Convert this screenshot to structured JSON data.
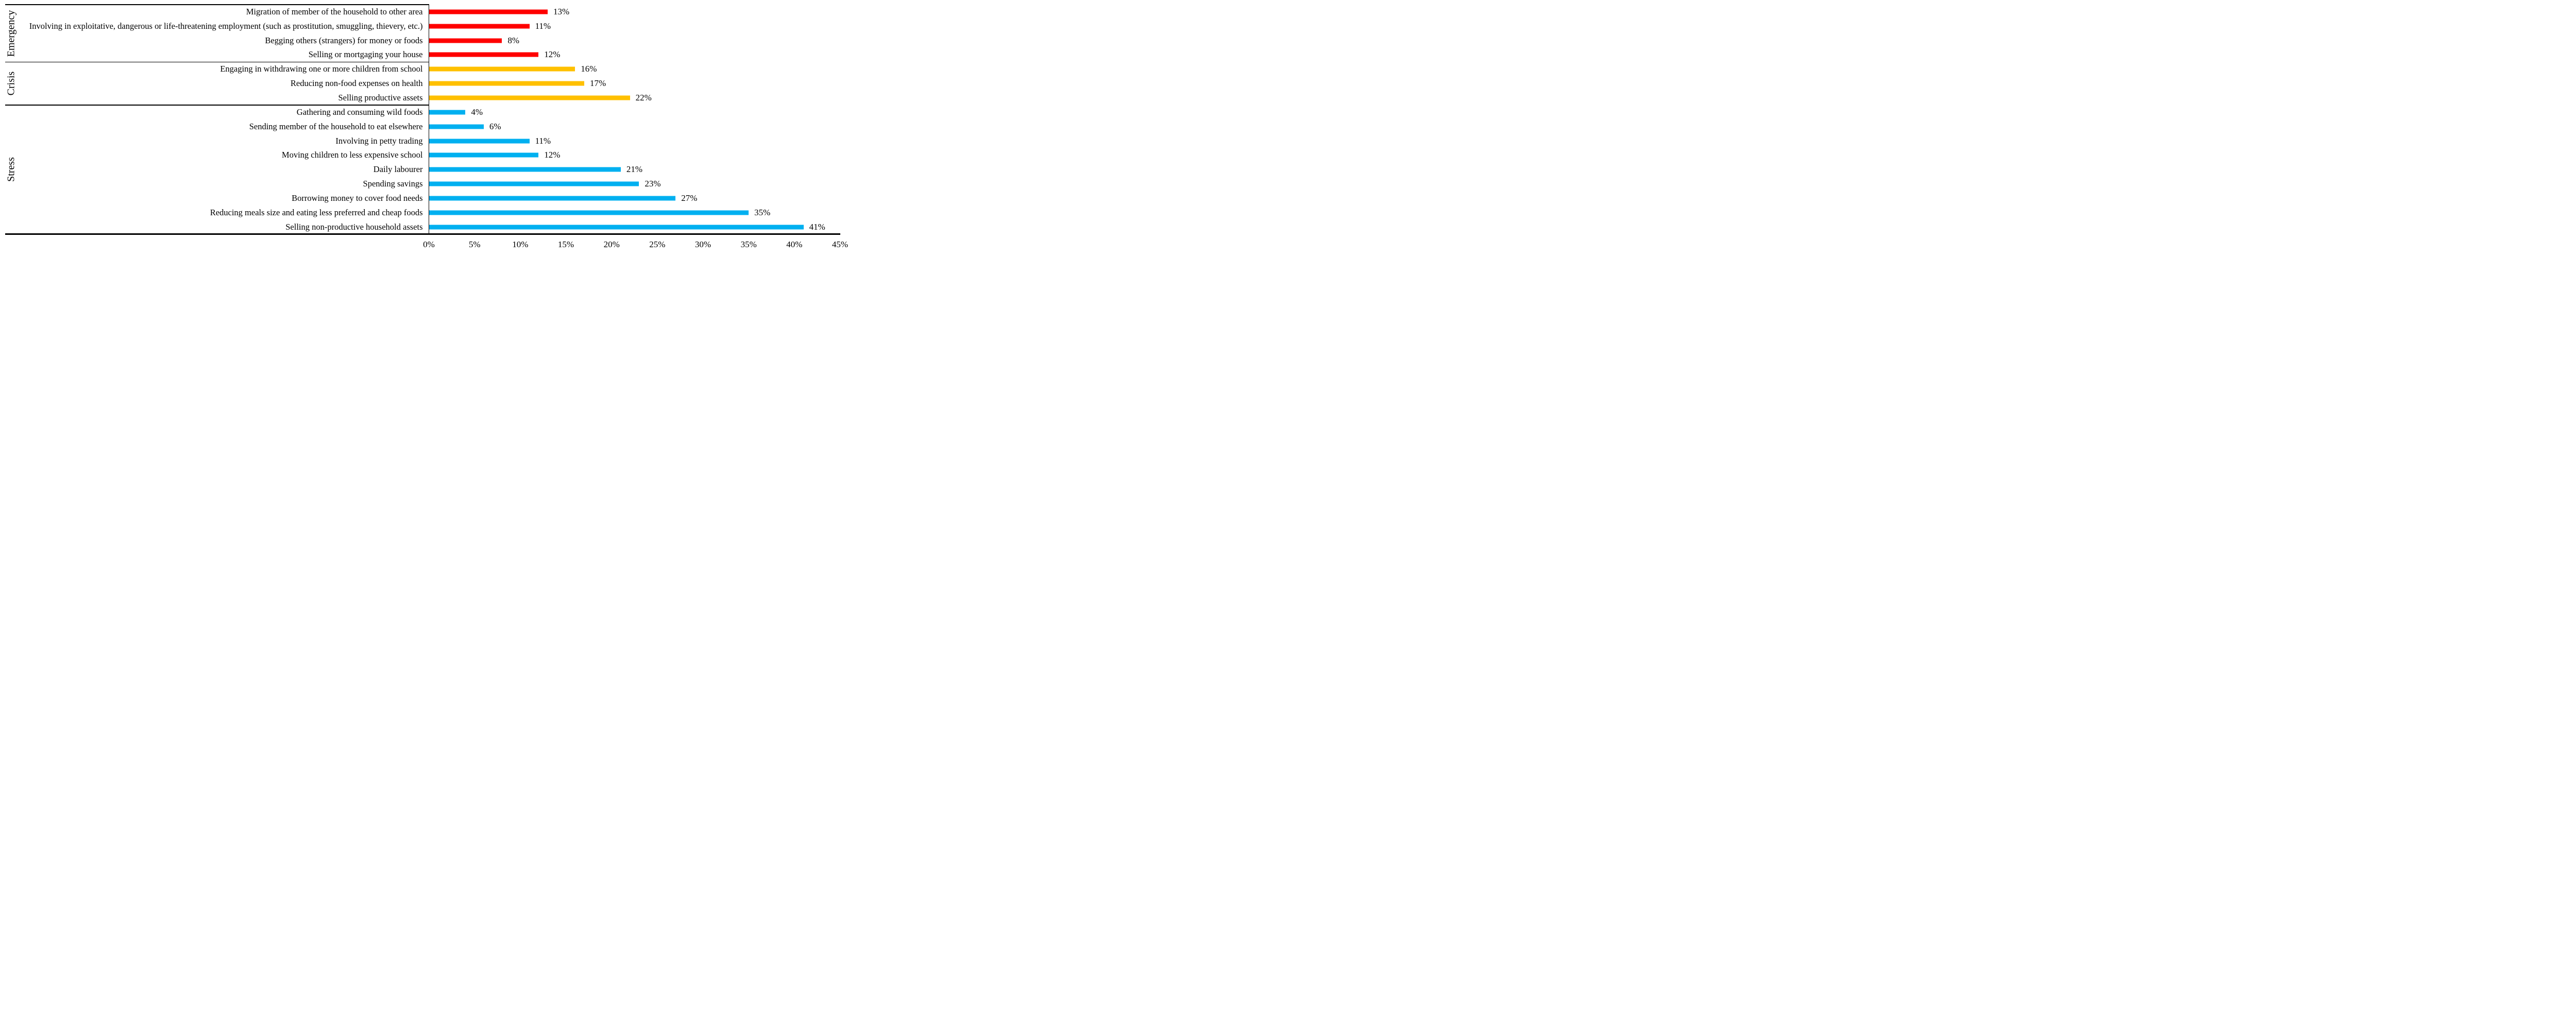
{
  "chart_data": {
    "type": "bar",
    "orientation": "horizontal",
    "title": "",
    "xlabel": "",
    "ylabel": "",
    "x_range": [
      0,
      45
    ],
    "x_ticks": [
      "0%",
      "5%",
      "10%",
      "15%",
      "20%",
      "25%",
      "30%",
      "35%",
      "40%",
      "45%"
    ],
    "grid": false,
    "legend": "none",
    "axis_color": "#000000",
    "groups": [
      {
        "name": "Emergency",
        "color": "#FF0000",
        "items": [
          {
            "label": "Migration of member of the household to other area",
            "value": 13,
            "value_label": "13%"
          },
          {
            "label": "Involving in exploitative, dangerous or life-threatening employment (such as prostitution, smuggling, thievery, etc.)",
            "value": 11,
            "value_label": "11%"
          },
          {
            "label": "Begging others (strangers) for money or foods",
            "value": 8,
            "value_label": "8%"
          },
          {
            "label": "Selling or mortgaging your house",
            "value": 12,
            "value_label": "12%"
          }
        ]
      },
      {
        "name": "Crisis",
        "color": "#FFC000",
        "items": [
          {
            "label": "Engaging in withdrawing one or more children from school",
            "value": 16,
            "value_label": "16%"
          },
          {
            "label": "Reducing non-food expenses on health",
            "value": 17,
            "value_label": "17%"
          },
          {
            "label": "Selling productive assets",
            "value": 22,
            "value_label": "22%"
          }
        ]
      },
      {
        "name": "Stress",
        "color": "#00B0F0",
        "items": [
          {
            "label": "Gathering and consuming wild foods",
            "value": 4,
            "value_label": "4%"
          },
          {
            "label": "Sending member of the household to eat elsewhere",
            "value": 6,
            "value_label": "6%"
          },
          {
            "label": "Involving in petty trading",
            "value": 11,
            "value_label": "11%"
          },
          {
            "label": "Moving children to less expensive school",
            "value": 12,
            "value_label": "12%"
          },
          {
            "label": "Daily labourer",
            "value": 21,
            "value_label": "21%"
          },
          {
            "label": "Spending savings",
            "value": 23,
            "value_label": "23%"
          },
          {
            "label": "Borrowing money to cover food needs",
            "value": 27,
            "value_label": "27%"
          },
          {
            "label": "Reducing meals size and eating less preferred and cheap foods",
            "value": 35,
            "value_label": "35%"
          },
          {
            "label": "Selling non-productive household assets",
            "value": 41,
            "value_label": "41%"
          }
        ]
      }
    ]
  }
}
